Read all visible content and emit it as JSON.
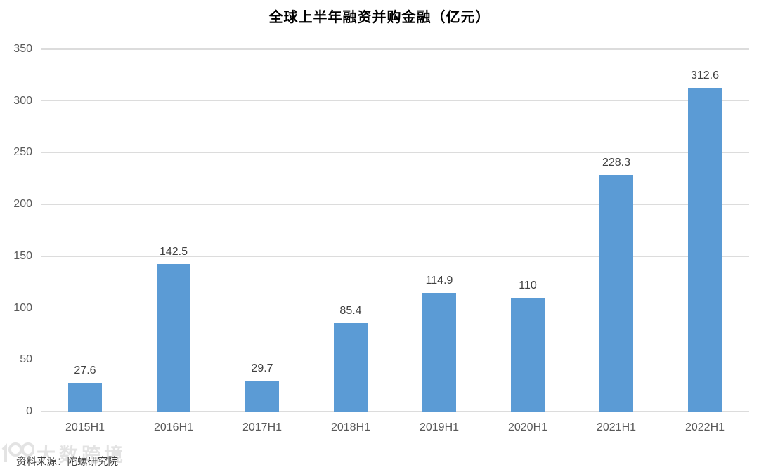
{
  "chart_data": {
    "type": "bar",
    "title": "全球上半年融资并购金融（亿元）",
    "categories": [
      "2015H1",
      "2016H1",
      "2017H1",
      "2018H1",
      "2019H1",
      "2020H1",
      "2021H1",
      "2022H1"
    ],
    "values": [
      27.6,
      142.5,
      29.7,
      85.4,
      114.9,
      110,
      228.3,
      312.6
    ],
    "value_labels": [
      "27.6",
      "142.5",
      "29.7",
      "85.4",
      "114.9",
      "110",
      "228.3",
      "312.6"
    ],
    "xlabel": "",
    "ylabel": "",
    "ylim": [
      0,
      350
    ],
    "yticks": [
      0,
      50,
      100,
      150,
      200,
      250,
      300,
      350
    ],
    "grid": true,
    "legend": false,
    "bar_color": "#5B9BD5",
    "gridline_color": "#DCDCDC",
    "value_label_color": "#404040",
    "axis_tick_color": "#595959",
    "title_color": "#000000"
  },
  "footer": {
    "source_label": "资料来源：陀螺研究院",
    "watermark_text": "大数跨境"
  }
}
